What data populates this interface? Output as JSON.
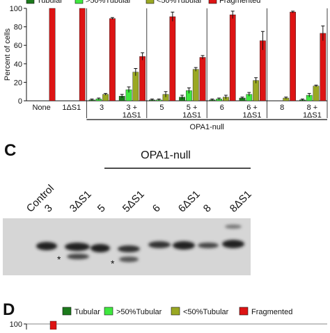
{
  "chart_data": [
    {
      "type": "bar",
      "ylabel": "Percent of cells",
      "group_label": "OPA1-null",
      "categories": [
        "None",
        "1ΔS1",
        "3",
        "3 +\n1ΔS1",
        "5",
        "5 +\n1ΔS1",
        "6",
        "6 +\n1ΔS1",
        "8",
        "8 +\n1ΔS1"
      ],
      "series": [
        {
          "name": "Tubular",
          "color": "#1c7a1c",
          "values": [
            0,
            0,
            1,
            5,
            1,
            4,
            1,
            3,
            0,
            1
          ],
          "errors": [
            0,
            0,
            1,
            2,
            1,
            2,
            1,
            1,
            0,
            1
          ]
        },
        {
          "name": ">50%Tubular",
          "color": "#3fe83f",
          "values": [
            0,
            0,
            2,
            12,
            1,
            11,
            2,
            7,
            0,
            6
          ],
          "errors": [
            0,
            0,
            1,
            3,
            1,
            3,
            1,
            2,
            0,
            2
          ]
        },
        {
          "name": "<50%Tubular",
          "color": "#9aa823",
          "values": [
            0,
            0,
            7,
            31,
            7,
            34,
            4,
            22,
            3,
            16
          ],
          "errors": [
            0,
            0,
            1,
            4,
            3,
            2,
            2,
            3,
            1,
            1
          ]
        },
        {
          "name": "Fragmented",
          "color": "#dd1414",
          "values": [
            100,
            100,
            89,
            48,
            91,
            47,
            93,
            65,
            96,
            73
          ],
          "errors": [
            0,
            0,
            1,
            4,
            5,
            2,
            4,
            10,
            1,
            8
          ]
        }
      ],
      "ylim": [
        0,
        100
      ],
      "yticks": [
        0,
        20,
        40,
        60,
        80,
        100
      ]
    },
    {
      "type": "legend-only",
      "series": [
        {
          "name": "Tubular",
          "color": "#1c7a1c"
        },
        {
          "name": ">50%Tubular",
          "color": "#3fe83f"
        },
        {
          "name": "<50%Tubular",
          "color": "#9aa823"
        },
        {
          "name": "Fragmented",
          "color": "#dd1414"
        }
      ],
      "yticks": [
        100
      ]
    }
  ],
  "blot": {
    "panel": "C",
    "title": "OPA1-null",
    "lanes": [
      "Control",
      "3",
      "3ΔS1",
      "5",
      "5ΔS1",
      "6",
      "6ΔS1",
      "8",
      "8ΔS1"
    ],
    "markers": [
      "*",
      "*"
    ]
  },
  "panel_d": "D"
}
